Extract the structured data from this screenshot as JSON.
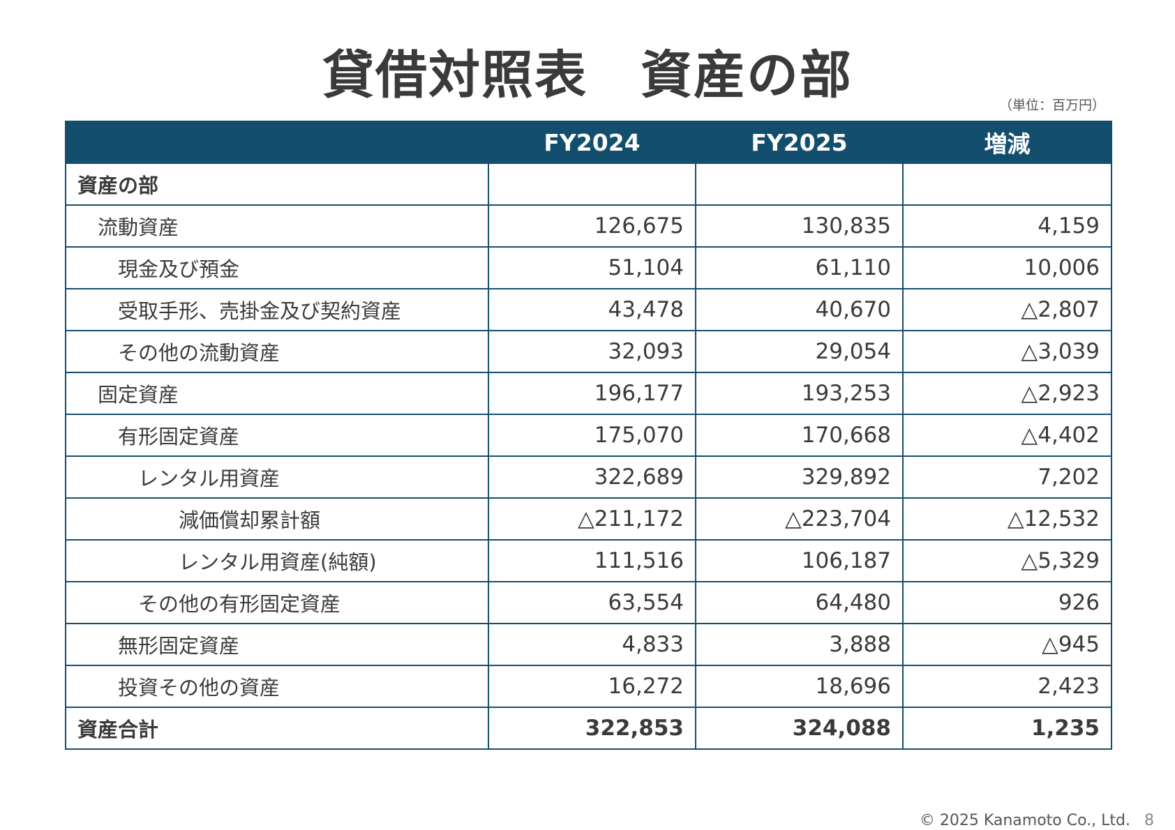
{
  "title": "貸借対照表　資産の部",
  "unit": "（単位：百万円）",
  "table": {
    "headers": [
      "",
      "FY2024",
      "FY2025",
      "増減"
    ],
    "rows": [
      {
        "label": "資産の部",
        "indent": 0,
        "bold": true,
        "fy2024": "",
        "fy2025": "",
        "change": ""
      },
      {
        "label": "流動資産",
        "indent": 1,
        "bold": false,
        "fy2024": "126,675",
        "fy2025": "130,835",
        "change": "4,159"
      },
      {
        "label": "現金及び預金",
        "indent": 2,
        "bold": false,
        "fy2024": "51,104",
        "fy2025": "61,110",
        "change": "10,006"
      },
      {
        "label": "受取手形、売掛金及び契約資産",
        "indent": 2,
        "bold": false,
        "fy2024": "43,478",
        "fy2025": "40,670",
        "change": "△2,807"
      },
      {
        "label": "その他の流動資産",
        "indent": 2,
        "bold": false,
        "fy2024": "32,093",
        "fy2025": "29,054",
        "change": "△3,039"
      },
      {
        "label": "固定資産",
        "indent": 1,
        "bold": false,
        "fy2024": "196,177",
        "fy2025": "193,253",
        "change": "△2,923"
      },
      {
        "label": "有形固定資産",
        "indent": 2,
        "bold": false,
        "fy2024": "175,070",
        "fy2025": "170,668",
        "change": "△4,402"
      },
      {
        "label": "レンタル用資産",
        "indent": 3,
        "bold": false,
        "fy2024": "322,689",
        "fy2025": "329,892",
        "change": "7,202"
      },
      {
        "label": "減価償却累計額",
        "indent": 5,
        "bold": false,
        "fy2024": "△211,172",
        "fy2025": "△223,704",
        "change": "△12,532"
      },
      {
        "label": "レンタル用資産(純額)",
        "indent": 5,
        "bold": false,
        "fy2024": "111,516",
        "fy2025": "106,187",
        "change": "△5,329"
      },
      {
        "label": "その他の有形固定資産",
        "indent": 3,
        "bold": false,
        "fy2024": "63,554",
        "fy2025": "64,480",
        "change": "926"
      },
      {
        "label": "無形固定資産",
        "indent": 2,
        "bold": false,
        "fy2024": "4,833",
        "fy2025": "3,888",
        "change": "△945"
      },
      {
        "label": "投資その他の資産",
        "indent": 2,
        "bold": false,
        "fy2024": "16,272",
        "fy2025": "18,696",
        "change": "2,423"
      },
      {
        "label": "資産合計",
        "indent": 0,
        "bold": true,
        "fy2024": "322,853",
        "fy2025": "324,088",
        "change": "1,235"
      }
    ]
  },
  "footer": {
    "copyright": "© 2025 Kanamoto Co., Ltd.",
    "page": "8"
  }
}
